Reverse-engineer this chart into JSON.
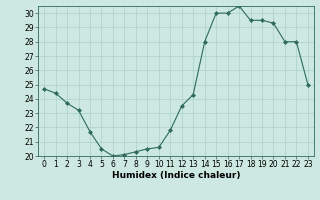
{
  "x": [
    0,
    1,
    2,
    3,
    4,
    5,
    6,
    7,
    8,
    9,
    10,
    11,
    12,
    13,
    14,
    15,
    16,
    17,
    18,
    19,
    20,
    21,
    22,
    23
  ],
  "y": [
    24.7,
    24.4,
    23.7,
    23.2,
    21.7,
    20.5,
    20.0,
    20.1,
    20.3,
    20.5,
    20.6,
    21.8,
    23.5,
    24.3,
    28.0,
    30.0,
    30.0,
    30.5,
    29.5,
    29.5,
    29.3,
    28.0,
    28.0,
    25.0
  ],
  "line_color": "#2e6b5e",
  "marker": "D",
  "marker_size": 2,
  "bg_color": "#cce8e0",
  "grid_color": "#aad0c8",
  "xlabel": "Humidex (Indice chaleur)",
  "xlim": [
    -0.5,
    23.5
  ],
  "ylim": [
    20,
    30.5
  ],
  "yticks": [
    20,
    21,
    22,
    23,
    24,
    25,
    26,
    27,
    28,
    29,
    30
  ],
  "xticks": [
    0,
    1,
    2,
    3,
    4,
    5,
    6,
    7,
    8,
    9,
    10,
    11,
    12,
    13,
    14,
    15,
    16,
    17,
    18,
    19,
    20,
    21,
    22,
    23
  ],
  "label_fontsize": 6.5,
  "tick_fontsize": 5.5
}
